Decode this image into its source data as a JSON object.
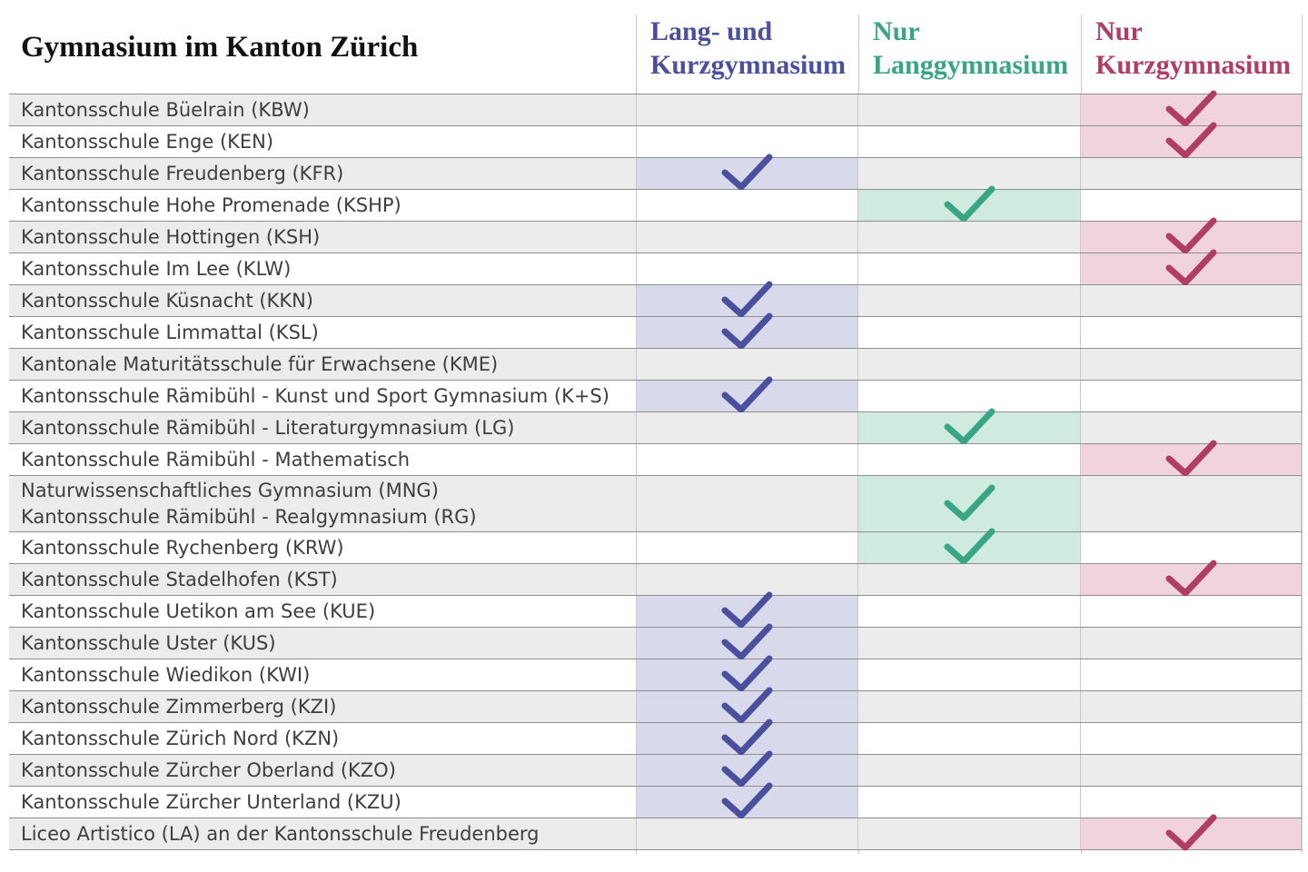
{
  "title": "Gymnasium im Kanton Zürich",
  "columns": [
    {
      "key": "both",
      "line1": "Lang- und",
      "line2": "Kurzgymnasium",
      "color": "#4a4f9e",
      "cell_color": "#d8d9eb",
      "icon": "check-icon"
    },
    {
      "key": "lang",
      "line1": "Nur",
      "line2": "Langgymnasium",
      "color": "#3aa585",
      "cell_color": "#cfeadf",
      "icon": "check-icon"
    },
    {
      "key": "kurz",
      "line1": "Nur",
      "line2": "Kurzgymnasium",
      "color": "#b03d63",
      "cell_color": "#f0d3dc",
      "icon": "check-icon"
    }
  ],
  "rows": [
    {
      "name": [
        "Kantonsschule Büelrain (KBW)"
      ],
      "type": "kurz"
    },
    {
      "name": [
        "Kantonsschule Enge (KEN)"
      ],
      "type": "kurz"
    },
    {
      "name": [
        "Kantonsschule Freudenberg (KFR)"
      ],
      "type": "both"
    },
    {
      "name": [
        "Kantonsschule Hohe Promenade (KSHP)"
      ],
      "type": "lang"
    },
    {
      "name": [
        "Kantonsschule Hottingen (KSH)"
      ],
      "type": "kurz"
    },
    {
      "name": [
        "Kantonsschule Im Lee (KLW)"
      ],
      "type": "kurz"
    },
    {
      "name": [
        "Kantonsschule Küsnacht (KKN)"
      ],
      "type": "both"
    },
    {
      "name": [
        "Kantonsschule Limmattal (KSL)"
      ],
      "type": "both"
    },
    {
      "name": [
        "Kantonale Maturitätsschule für Erwachsene (KME)"
      ],
      "type": ""
    },
    {
      "name": [
        "Kantonsschule Rämibühl - Kunst und Sport Gymnasium (K+S)"
      ],
      "type": "both"
    },
    {
      "name": [
        "Kantonsschule Rämibühl - Literaturgymnasium (LG)"
      ],
      "type": "lang"
    },
    {
      "name": [
        "Kantonsschule Rämibühl - Mathematisch"
      ],
      "type": "kurz"
    },
    {
      "name": [
        "Naturwissenschaftliches Gymnasium (MNG)",
        "Kantonsschule Rämibühl - Realgymnasium (RG)"
      ],
      "type": "lang"
    },
    {
      "name": [
        "Kantonsschule Rychenberg (KRW)"
      ],
      "type": "lang"
    },
    {
      "name": [
        "Kantonsschule Stadelhofen (KST)"
      ],
      "type": "kurz"
    },
    {
      "name": [
        "Kantonsschule Uetikon am See (KUE)"
      ],
      "type": "both"
    },
    {
      "name": [
        "Kantonsschule Uster (KUS)"
      ],
      "type": "both"
    },
    {
      "name": [
        "Kantonsschule Wiedikon (KWI)"
      ],
      "type": "both"
    },
    {
      "name": [
        "Kantonsschule Zimmerberg (KZI)"
      ],
      "type": "both"
    },
    {
      "name": [
        "Kantonsschule Zürich Nord (KZN)"
      ],
      "type": "both"
    },
    {
      "name": [
        "Kantonsschule Zürcher Oberland (KZO)"
      ],
      "type": "both"
    },
    {
      "name": [
        "Kantonsschule Zürcher Unterland (KZU)"
      ],
      "type": "both"
    },
    {
      "name": [
        "Liceo Artistico (LA) an der Kantonsschule Freudenberg"
      ],
      "type": "kurz"
    }
  ]
}
